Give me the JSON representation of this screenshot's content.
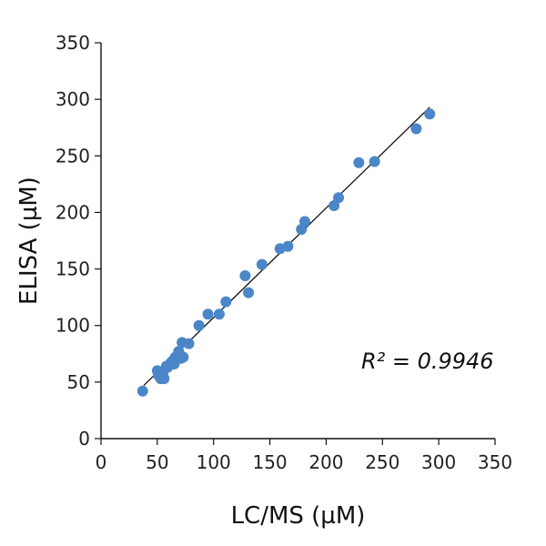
{
  "chart_data": {
    "type": "scatter",
    "title": "",
    "xlabel": "LC/MS (µM)",
    "ylabel": "ELISA (µM)",
    "xlim": [
      0,
      350
    ],
    "ylim": [
      0,
      350
    ],
    "xticks": [
      0,
      50,
      100,
      150,
      200,
      250,
      300,
      350
    ],
    "yticks": [
      0,
      50,
      100,
      150,
      200,
      250,
      300,
      350
    ],
    "xtick_labels": [
      "0",
      "50",
      "100",
      "150",
      "200",
      "250",
      "300",
      "350"
    ],
    "ytick_labels": [
      "0",
      "50",
      "100",
      "150",
      "200",
      "250",
      "300",
      "350"
    ],
    "grid": false,
    "legend": "none",
    "marker_color": "#4a86c8",
    "series": [
      {
        "x": [
          37,
          50,
          51,
          53,
          55,
          56,
          58,
          59,
          61,
          62,
          63,
          64,
          65,
          66,
          67,
          68,
          69,
          70,
          71,
          72,
          73,
          78,
          87,
          95,
          105,
          111,
          128,
          131,
          143,
          159,
          166,
          178,
          181,
          207,
          211,
          229,
          243,
          280,
          292
        ],
        "y": [
          42,
          60,
          56,
          53,
          57,
          53,
          64,
          63,
          65,
          67,
          68,
          69,
          66,
          72,
          70,
          71,
          77,
          74,
          71,
          85,
          72,
          84,
          100,
          110,
          110,
          121,
          144,
          129,
          154,
          168,
          170,
          185,
          192,
          206,
          213,
          244,
          245,
          274,
          287
        ]
      }
    ],
    "fit_line": {
      "x": [
        38,
        292
      ],
      "y": [
        47,
        293
      ]
    },
    "annotations": [
      {
        "text": "R² = 0.9946",
        "x": 290,
        "y": 62
      }
    ]
  }
}
